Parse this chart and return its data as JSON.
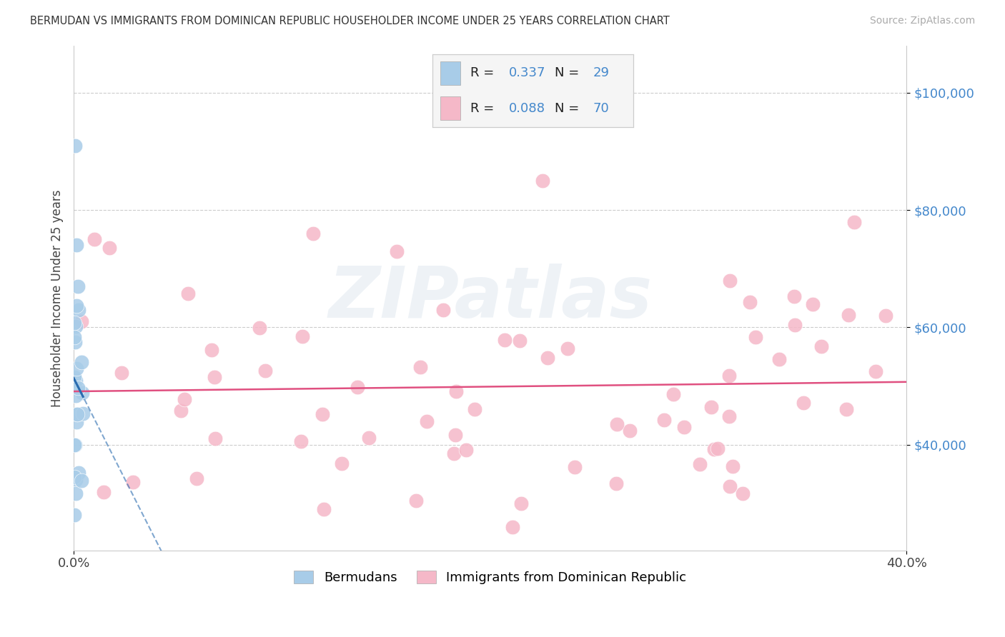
{
  "title": "BERMUDAN VS IMMIGRANTS FROM DOMINICAN REPUBLIC HOUSEHOLDER INCOME UNDER 25 YEARS CORRELATION CHART",
  "source": "Source: ZipAtlas.com",
  "ylabel": "Householder Income Under 25 years",
  "xlim": [
    0.0,
    0.4
  ],
  "ylim": [
    22000,
    108000
  ],
  "yticks": [
    40000,
    60000,
    80000,
    100000
  ],
  "ytick_labels": [
    "$40,000",
    "$60,000",
    "$80,000",
    "$100,000"
  ],
  "xticks": [
    0.0,
    0.4
  ],
  "xtick_labels": [
    "0.0%",
    "40.0%"
  ],
  "background_color": "#ffffff",
  "grid_color": "#cccccc",
  "watermark_text": "ZIPatlas",
  "blue_color": "#a8cce8",
  "pink_color": "#f5b8c8",
  "blue_line_color": "#2b6cb0",
  "pink_line_color": "#e05080",
  "ytick_color": "#4488cc",
  "label1": "Bermudans",
  "label2": "Immigrants from Dominican Republic"
}
